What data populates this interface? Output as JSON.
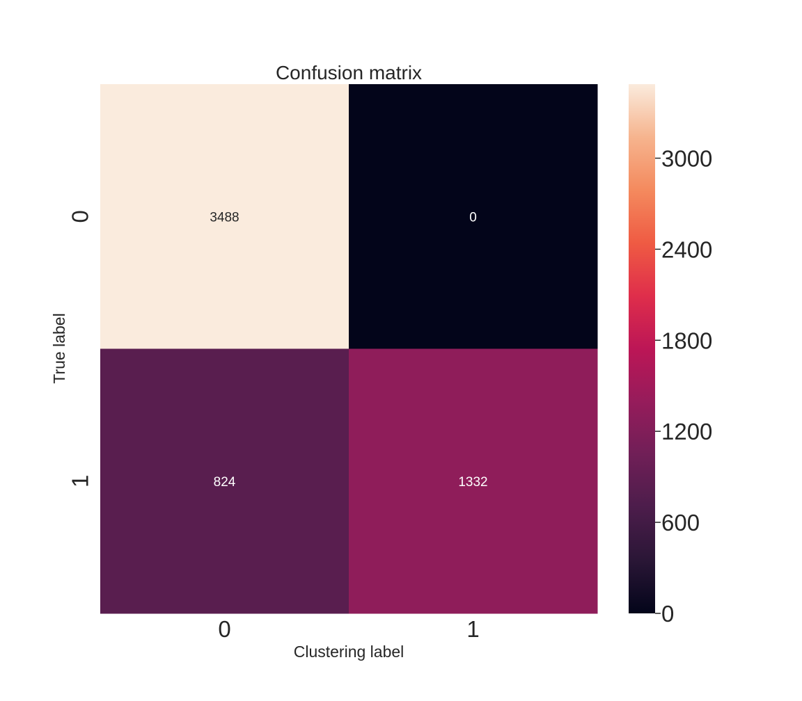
{
  "chart_data": {
    "type": "heatmap",
    "title": "Confusion matrix",
    "xlabel": "Clustering label",
    "ylabel": "True label",
    "x_categories": [
      "0",
      "1"
    ],
    "y_categories": [
      "0",
      "1"
    ],
    "values": [
      [
        3488,
        0
      ],
      [
        824,
        1332
      ]
    ],
    "value_labels": [
      [
        "3488",
        "0"
      ],
      [
        "824",
        "1332"
      ]
    ],
    "colorbar": {
      "vmin": 0,
      "vmax": 3488,
      "ticks": [
        0,
        600,
        1200,
        1800,
        2400,
        3000
      ],
      "tick_labels": [
        "0",
        "600",
        "1200",
        "1800",
        "2400",
        "3000"
      ],
      "colormap": "rocket",
      "colormap_stops": [
        "#03051a",
        "#2a1636",
        "#4c1d4b",
        "#701f57",
        "#961c5b",
        "#bc1656",
        "#df2e4b",
        "#ef5b43",
        "#f48a5e",
        "#f6b48e",
        "#faebdd"
      ]
    },
    "grid": false,
    "legend": "colorbar-right"
  }
}
